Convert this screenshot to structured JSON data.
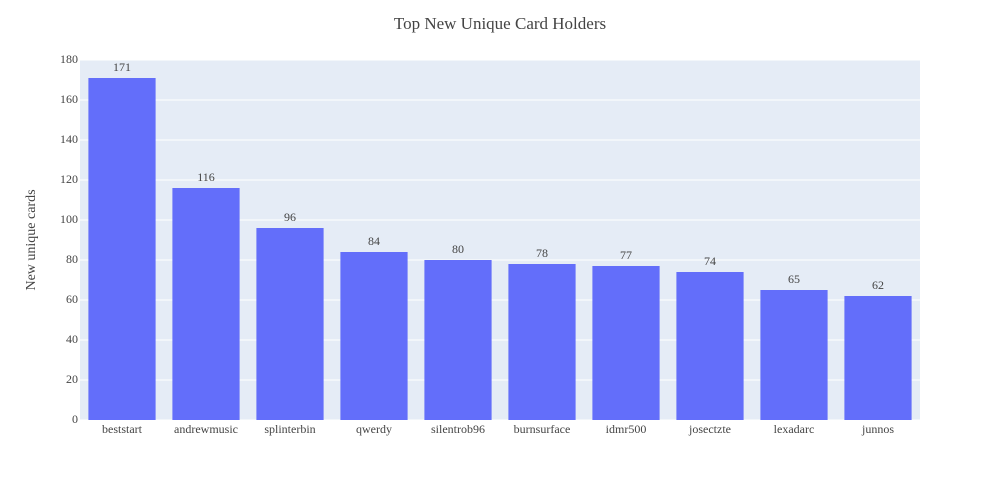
{
  "chart_data": {
    "type": "bar",
    "title": "Top New Unique Card Holders",
    "y_label": "New unique cards",
    "categories": [
      "beststart",
      "andrewmusic",
      "splinterbin",
      "qwerdy",
      "silentrob96",
      "burnsurface",
      "idmr500",
      "josectzte",
      "lexadarc",
      "junnos"
    ],
    "values": [
      171,
      116,
      96,
      84,
      80,
      78,
      77,
      74,
      65,
      62
    ],
    "color": "#636efa",
    "ylim": [
      0,
      180
    ],
    "yticks": [
      0,
      20,
      40,
      60,
      80,
      100,
      120,
      140,
      160,
      180
    ],
    "grid": true
  }
}
